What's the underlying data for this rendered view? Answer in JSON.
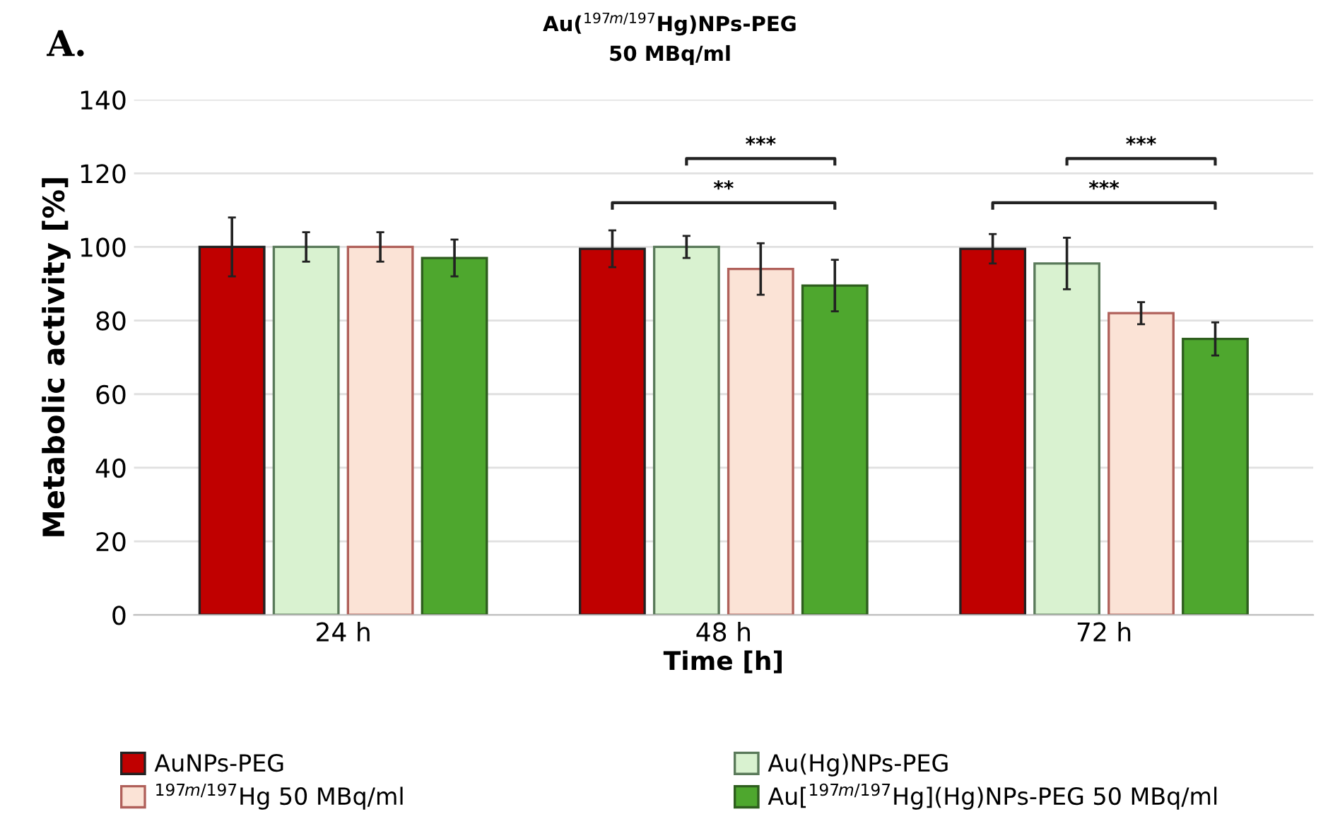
{
  "chart_data": {
    "type": "bar",
    "title": "Au($^{197m/197}$Hg)NPs-PEG\n50 MBq/ml",
    "xlabel": "Time [h]",
    "ylabel": "Metabolic activity [%]",
    "categories": [
      "24 h",
      "48 h",
      "72 h"
    ],
    "series": [
      {
        "name": "AuNPs-PEG",
        "color": "#c00000",
        "values": [
          100,
          99.5,
          99.5
        ],
        "errors": [
          8,
          5,
          4
        ]
      },
      {
        "name": "$^{197m/197}$Hg 50 MBq/ml",
        "color": "#fbe3d6",
        "values": [
          100,
          94,
          82
        ],
        "errors": [
          4,
          7,
          3
        ]
      },
      {
        "name": "Au(Hg)NPs-PEG",
        "color": "#d9f2d0",
        "values": [
          100,
          100,
          95.5
        ],
        "errors": [
          4,
          3,
          7
        ]
      },
      {
        "name": "Au[$^{197m/197}$Hg](Hg)NPs-PEG 50 MBq/ml",
        "color": "#4ea72e",
        "values": [
          97,
          89.5,
          75
        ],
        "errors": [
          5,
          7,
          4.5
        ]
      }
    ],
    "ylim": [
      0,
      140
    ],
    "yticks": [
      0,
      20,
      40,
      60,
      80,
      100,
      120,
      140
    ],
    "grid": "y",
    "legend": "bottom",
    "annotations": [
      "A.",
      "***",
      "**",
      "***",
      "***"
    ]
  }
}
